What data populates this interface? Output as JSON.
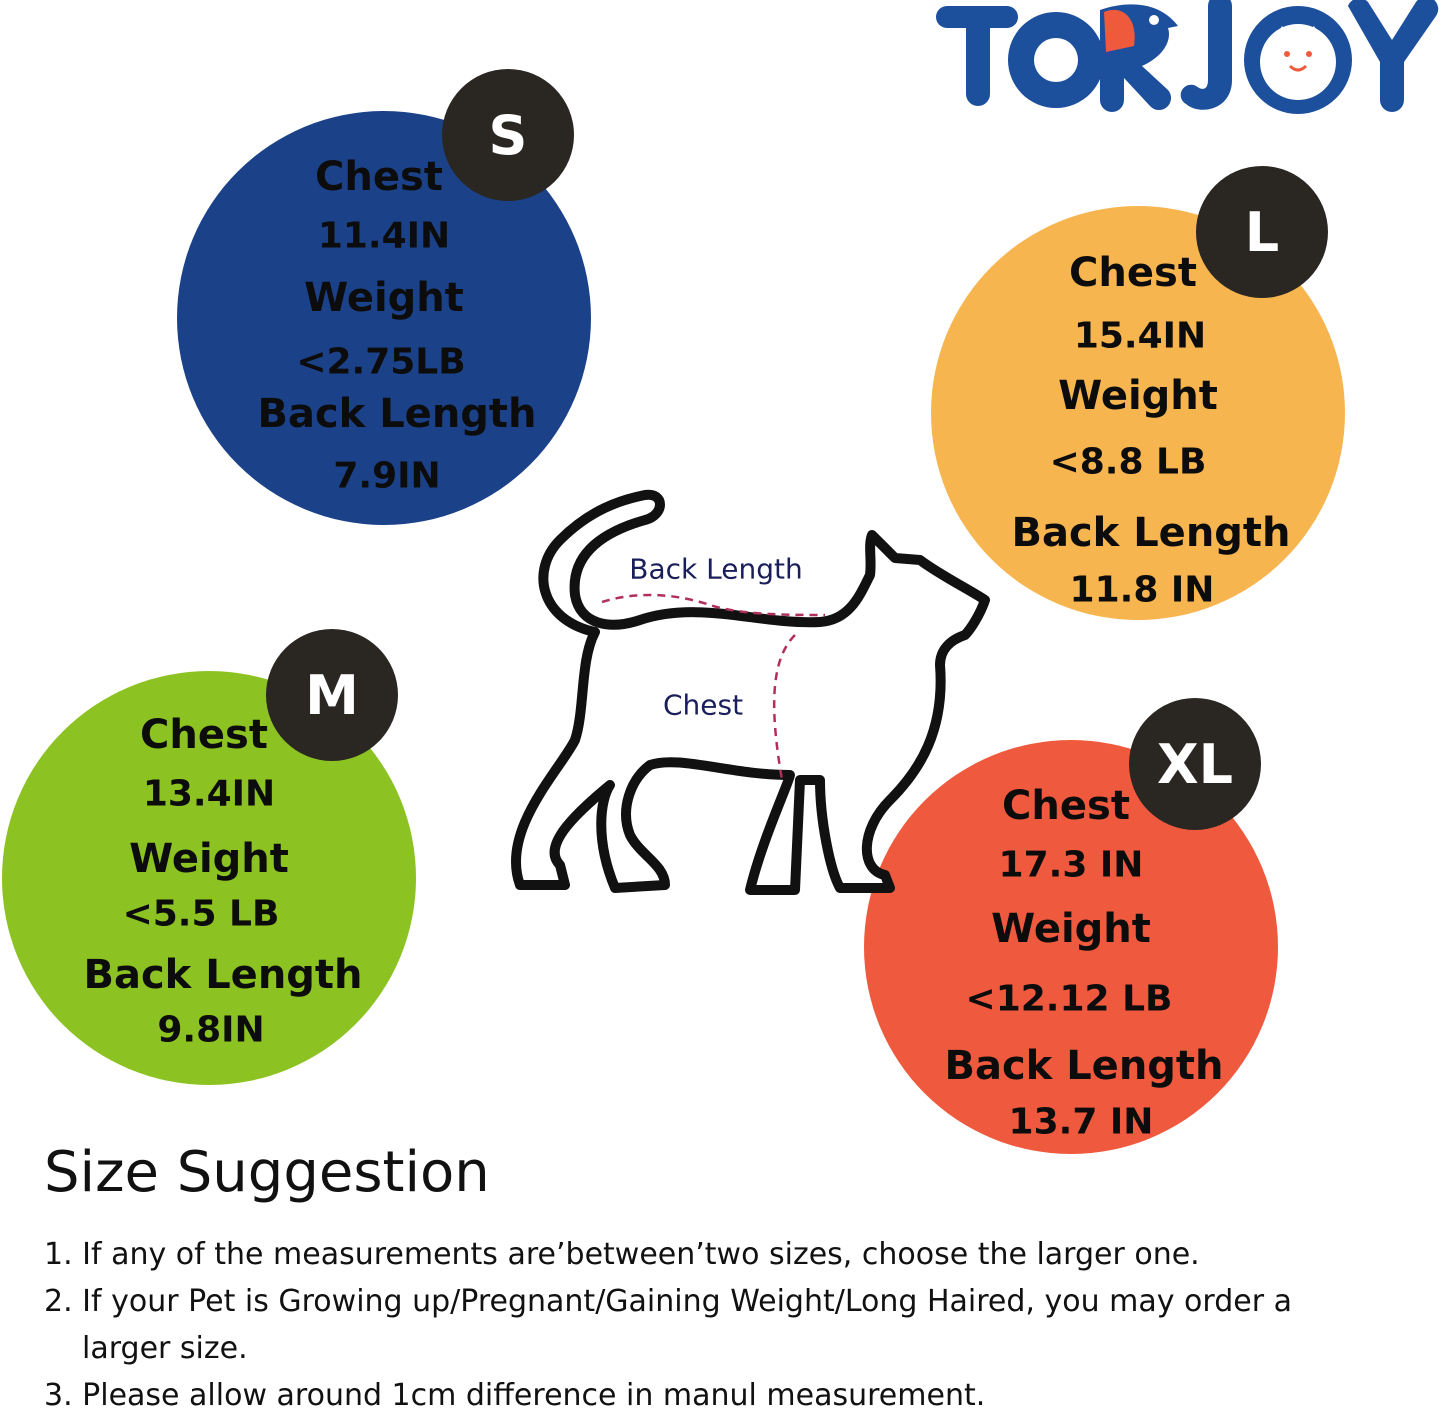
{
  "brand": {
    "logo_text": "TORJOY",
    "colors": {
      "blue": "#1c4f9c",
      "red": "#f05a3c"
    }
  },
  "sizes": [
    {
      "size": "S",
      "color": "#1b4288",
      "lines": [
        "Chest",
        "11.4IN",
        "Weight",
        "<2.75LB",
        "Back Length",
        "7.9IN"
      ]
    },
    {
      "size": "L",
      "color": "#f7b550",
      "lines": [
        "Chest",
        "15.4IN",
        "Weight",
        "<8.8 LB",
        "Back Length",
        "11.8 IN"
      ]
    },
    {
      "size": "M",
      "color": "#8cc322",
      "lines": [
        "Chest",
        "13.4IN",
        "Weight",
        "<5.5 LB",
        "Back Length",
        "9.8IN"
      ]
    },
    {
      "size": "XL",
      "color": "#ef5a3e",
      "lines": [
        "Chest",
        "17.3 IN",
        "Weight",
        "<12.12 LB",
        "Back Length",
        "13.7 IN"
      ]
    }
  ],
  "diagram": {
    "back_length_label": "Back Length",
    "chest_label": "Chest",
    "icon": "cat-outline-icon"
  },
  "suggestion": {
    "title": "Size Suggestion",
    "items": [
      "1. If any of the measurements are’between’two sizes, choose the larger one.",
      "2. If your Pet is Growing up/Pregnant/Gaining Weight/Long Haired, you may order a",
      "larger size.",
      "3. Please allow around 1cm difference in manul measurement."
    ]
  }
}
